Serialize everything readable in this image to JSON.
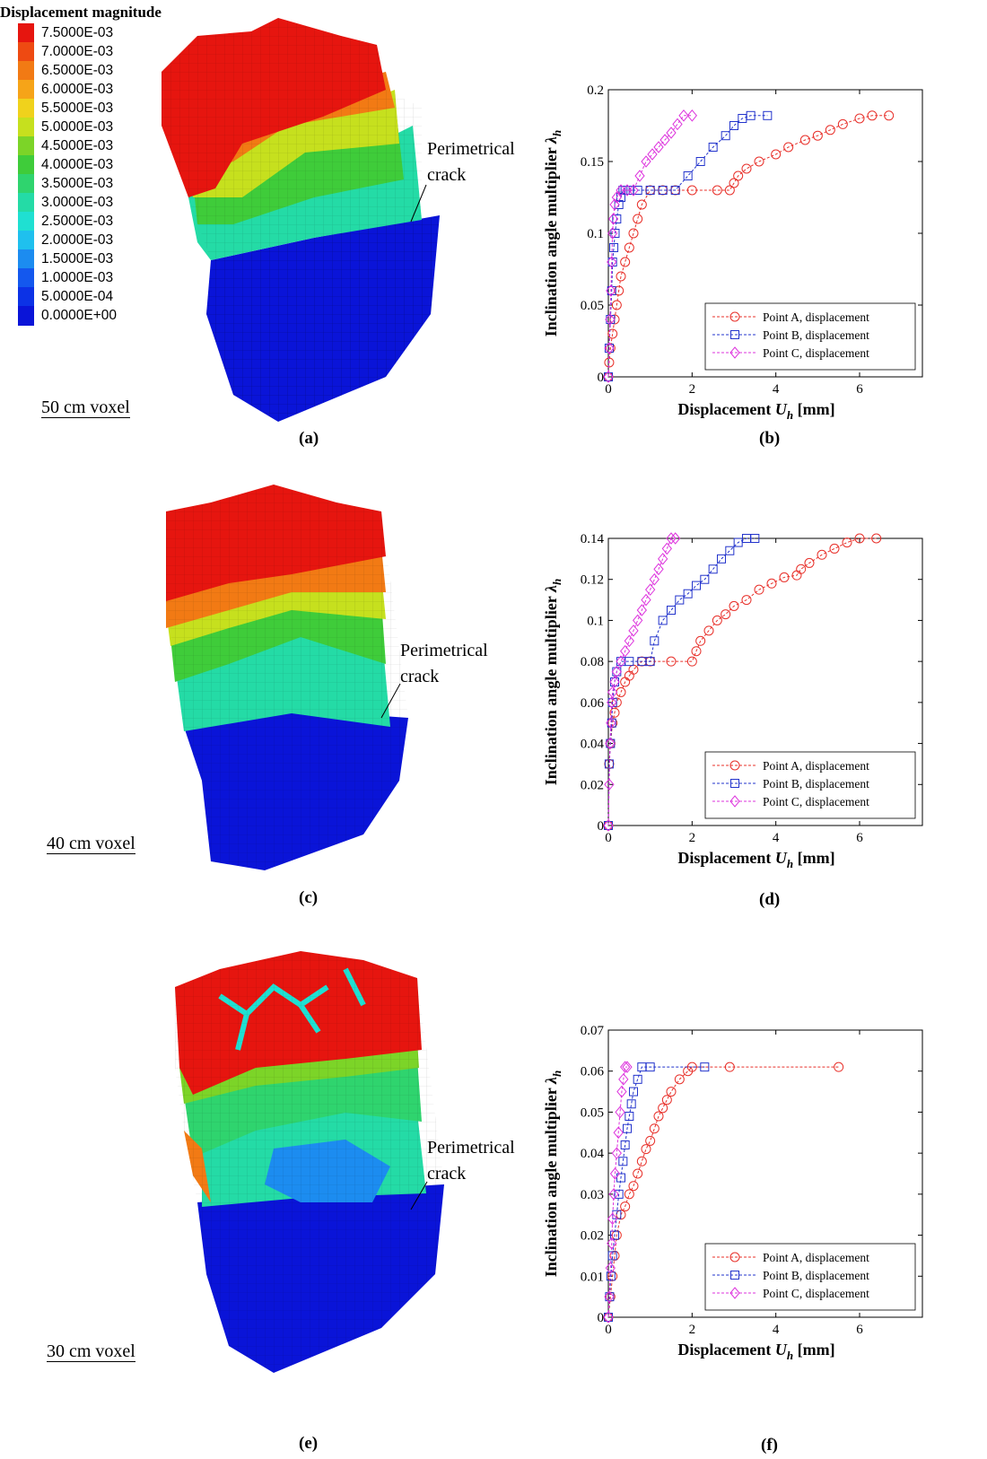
{
  "legend": {
    "title": "Displacement magnitude",
    "entries": [
      {
        "label": "7.5000E-03",
        "color": "#e6150f"
      },
      {
        "label": "7.0000E-03",
        "color": "#ee4a12"
      },
      {
        "label": "6.5000E-03",
        "color": "#f27a14"
      },
      {
        "label": "6.0000E-03",
        "color": "#f6a418"
      },
      {
        "label": "5.5000E-03",
        "color": "#f0d21c"
      },
      {
        "label": "5.0000E-03",
        "color": "#c6e01e"
      },
      {
        "label": "4.5000E-03",
        "color": "#7cd428"
      },
      {
        "label": "4.0000E-03",
        "color": "#3fcc3a"
      },
      {
        "label": "3.5000E-03",
        "color": "#2fd46e"
      },
      {
        "label": "3.0000E-03",
        "color": "#24dba6"
      },
      {
        "label": "2.5000E-03",
        "color": "#1fe0d2"
      },
      {
        "label": "2.0000E-03",
        "color": "#1fc0ee"
      },
      {
        "label": "1.5000E-03",
        "color": "#1c8cf0"
      },
      {
        "label": "1.0000E-03",
        "color": "#1458ee"
      },
      {
        "label": "5.0000E-04",
        "color": "#0c32e6"
      },
      {
        "label": "0.0000E+00",
        "color": "#0a14d8"
      }
    ]
  },
  "panels": {
    "a": {
      "label": "(a)",
      "voxel": "50 cm voxel",
      "crack": [
        "Perimetrical",
        "crack"
      ]
    },
    "b": {
      "label": "(b)"
    },
    "c": {
      "label": "(c)",
      "voxel": "40 cm voxel",
      "crack": [
        "Perimetrical",
        "crack"
      ]
    },
    "d": {
      "label": "(d)"
    },
    "e": {
      "label": "(e)",
      "voxel": "30 cm voxel",
      "crack": [
        "Perimetrical",
        "crack"
      ]
    },
    "f": {
      "label": "(f)"
    }
  },
  "colors": {
    "A": "#e8302a",
    "B": "#2233cc",
    "C": "#dd33dd"
  },
  "chart_data": [
    {
      "type": "line",
      "xlabel": "Displacement U_h [mm]",
      "ylabel": "Inclination angle multiplier λ_h",
      "xlim": [
        0,
        7.5
      ],
      "ylim": [
        0,
        0.2
      ],
      "xticks": [
        0,
        2,
        4,
        6
      ],
      "yticks": [
        0,
        0.05,
        0.1,
        0.15,
        0.2
      ],
      "ytick_labels": [
        "0",
        "0.05",
        "0.1",
        "0.15",
        "0.2"
      ],
      "legend": "bottom-right",
      "series": [
        {
          "name": "Point A, displacement",
          "marker": "circle",
          "x": [
            0,
            0.02,
            0.05,
            0.1,
            0.15,
            0.2,
            0.25,
            0.3,
            0.4,
            0.5,
            0.6,
            0.7,
            0.8,
            1.0,
            1.3,
            1.6,
            2.0,
            2.6,
            2.9,
            3.0,
            3.1,
            3.3,
            3.6,
            4.0,
            4.3,
            4.7,
            5.0,
            5.3,
            5.6,
            6.0,
            6.3,
            6.7
          ],
          "y": [
            0,
            0.01,
            0.02,
            0.03,
            0.04,
            0.05,
            0.06,
            0.07,
            0.08,
            0.09,
            0.1,
            0.11,
            0.12,
            0.13,
            0.13,
            0.13,
            0.13,
            0.13,
            0.13,
            0.135,
            0.14,
            0.145,
            0.15,
            0.155,
            0.16,
            0.165,
            0.168,
            0.172,
            0.176,
            0.18,
            0.182,
            0.182
          ]
        },
        {
          "name": "Point B, displacement",
          "marker": "square",
          "x": [
            0,
            0.02,
            0.05,
            0.08,
            0.1,
            0.13,
            0.16,
            0.2,
            0.25,
            0.3,
            0.35,
            0.4,
            0.5,
            0.7,
            1.0,
            1.3,
            1.6,
            1.9,
            2.2,
            2.5,
            2.8,
            3.0,
            3.2,
            3.4,
            3.8
          ],
          "y": [
            0,
            0.02,
            0.04,
            0.06,
            0.08,
            0.09,
            0.1,
            0.11,
            0.12,
            0.125,
            0.13,
            0.13,
            0.13,
            0.13,
            0.13,
            0.13,
            0.13,
            0.14,
            0.15,
            0.16,
            0.168,
            0.175,
            0.18,
            0.182,
            0.182
          ]
        },
        {
          "name": "Point C, displacement",
          "marker": "diamond",
          "x": [
            0,
            0.02,
            0.04,
            0.06,
            0.08,
            0.1,
            0.12,
            0.15,
            0.2,
            0.3,
            0.45,
            0.6,
            0.75,
            0.9,
            1.05,
            1.2,
            1.35,
            1.5,
            1.65,
            1.8,
            2.0
          ],
          "y": [
            0,
            0.02,
            0.04,
            0.06,
            0.08,
            0.1,
            0.11,
            0.12,
            0.125,
            0.13,
            0.13,
            0.13,
            0.14,
            0.15,
            0.155,
            0.16,
            0.165,
            0.17,
            0.176,
            0.182,
            0.182
          ]
        }
      ]
    },
    {
      "type": "line",
      "xlabel": "Displacement U_h [mm]",
      "ylabel": "Inclination angle multiplier λ_h",
      "xlim": [
        0,
        7.5
      ],
      "ylim": [
        0,
        0.14
      ],
      "xticks": [
        0,
        2,
        4,
        6
      ],
      "yticks": [
        0,
        0.02,
        0.04,
        0.06,
        0.08,
        0.1,
        0.12,
        0.14
      ],
      "ytick_labels": [
        "0",
        "0.02",
        "0.04",
        "0.06",
        "0.08",
        "0.1",
        "0.12",
        "0.14"
      ],
      "legend": "bottom-right",
      "series": [
        {
          "name": "Point A, displacement",
          "marker": "circle",
          "x": [
            0,
            0.02,
            0.05,
            0.1,
            0.15,
            0.2,
            0.3,
            0.4,
            0.5,
            0.6,
            0.8,
            1.0,
            1.5,
            2.0,
            2.1,
            2.2,
            2.4,
            2.6,
            2.8,
            3.0,
            3.3,
            3.6,
            3.9,
            4.2,
            4.5,
            4.6,
            4.8,
            5.1,
            5.4,
            5.7,
            6.0,
            6.4
          ],
          "y": [
            0,
            0.03,
            0.04,
            0.05,
            0.055,
            0.06,
            0.065,
            0.07,
            0.073,
            0.076,
            0.08,
            0.08,
            0.08,
            0.08,
            0.085,
            0.09,
            0.095,
            0.1,
            0.103,
            0.107,
            0.11,
            0.115,
            0.118,
            0.121,
            0.122,
            0.125,
            0.128,
            0.132,
            0.135,
            0.138,
            0.14,
            0.14
          ]
        },
        {
          "name": "Point B, displacement",
          "marker": "square",
          "x": [
            0,
            0.02,
            0.05,
            0.08,
            0.1,
            0.15,
            0.2,
            0.3,
            0.5,
            0.8,
            1.0,
            1.1,
            1.3,
            1.5,
            1.7,
            1.9,
            2.1,
            2.3,
            2.5,
            2.7,
            2.9,
            3.1,
            3.3,
            3.5
          ],
          "y": [
            0,
            0.03,
            0.04,
            0.05,
            0.06,
            0.07,
            0.075,
            0.08,
            0.08,
            0.08,
            0.08,
            0.09,
            0.1,
            0.105,
            0.11,
            0.113,
            0.117,
            0.12,
            0.125,
            0.13,
            0.134,
            0.138,
            0.14,
            0.14
          ]
        },
        {
          "name": "Point C, displacement",
          "marker": "diamond",
          "x": [
            0,
            0.02,
            0.04,
            0.06,
            0.08,
            0.1,
            0.15,
            0.2,
            0.3,
            0.4,
            0.5,
            0.6,
            0.7,
            0.8,
            0.9,
            1.0,
            1.1,
            1.2,
            1.3,
            1.4,
            1.5,
            1.6
          ],
          "y": [
            0,
            0.02,
            0.04,
            0.05,
            0.06,
            0.065,
            0.07,
            0.075,
            0.08,
            0.085,
            0.09,
            0.095,
            0.1,
            0.105,
            0.11,
            0.115,
            0.12,
            0.125,
            0.13,
            0.135,
            0.14,
            0.14
          ]
        }
      ]
    },
    {
      "type": "line",
      "xlabel": "Displacement U_h [mm]",
      "ylabel": "Inclination angle multiplier λ_h",
      "xlim": [
        0,
        7.5
      ],
      "ylim": [
        0,
        0.07
      ],
      "xticks": [
        0,
        2,
        4,
        6
      ],
      "yticks": [
        0,
        0.01,
        0.02,
        0.03,
        0.04,
        0.05,
        0.06,
        0.07
      ],
      "ytick_labels": [
        "0",
        "0.01",
        "0.02",
        "0.03",
        "0.04",
        "0.05",
        "0.06",
        "0.07"
      ],
      "legend": "bottom-right",
      "series": [
        {
          "name": "Point A, displacement",
          "marker": "circle",
          "x": [
            0,
            0.05,
            0.1,
            0.15,
            0.2,
            0.3,
            0.4,
            0.5,
            0.6,
            0.7,
            0.8,
            0.9,
            1.0,
            1.1,
            1.2,
            1.3,
            1.4,
            1.5,
            1.7,
            1.9,
            2.0,
            2.9,
            5.5
          ],
          "y": [
            0,
            0.005,
            0.01,
            0.015,
            0.02,
            0.025,
            0.027,
            0.03,
            0.032,
            0.035,
            0.038,
            0.041,
            0.043,
            0.046,
            0.049,
            0.051,
            0.053,
            0.055,
            0.058,
            0.06,
            0.061,
            0.061,
            0.061
          ]
        },
        {
          "name": "Point B, displacement",
          "marker": "square",
          "x": [
            0,
            0.03,
            0.06,
            0.1,
            0.15,
            0.2,
            0.25,
            0.3,
            0.35,
            0.4,
            0.45,
            0.5,
            0.55,
            0.6,
            0.7,
            0.8,
            1.0,
            2.3
          ],
          "y": [
            0,
            0.005,
            0.01,
            0.015,
            0.02,
            0.025,
            0.03,
            0.034,
            0.038,
            0.042,
            0.046,
            0.049,
            0.052,
            0.055,
            0.058,
            0.061,
            0.061,
            0.061
          ]
        },
        {
          "name": "Point C, displacement",
          "marker": "diamond",
          "x": [
            0,
            0.02,
            0.05,
            0.08,
            0.1,
            0.13,
            0.16,
            0.2,
            0.24,
            0.28,
            0.32,
            0.36,
            0.4,
            0.45
          ],
          "y": [
            0,
            0.005,
            0.012,
            0.018,
            0.024,
            0.03,
            0.035,
            0.04,
            0.045,
            0.05,
            0.055,
            0.058,
            0.061,
            0.061
          ]
        }
      ]
    }
  ]
}
